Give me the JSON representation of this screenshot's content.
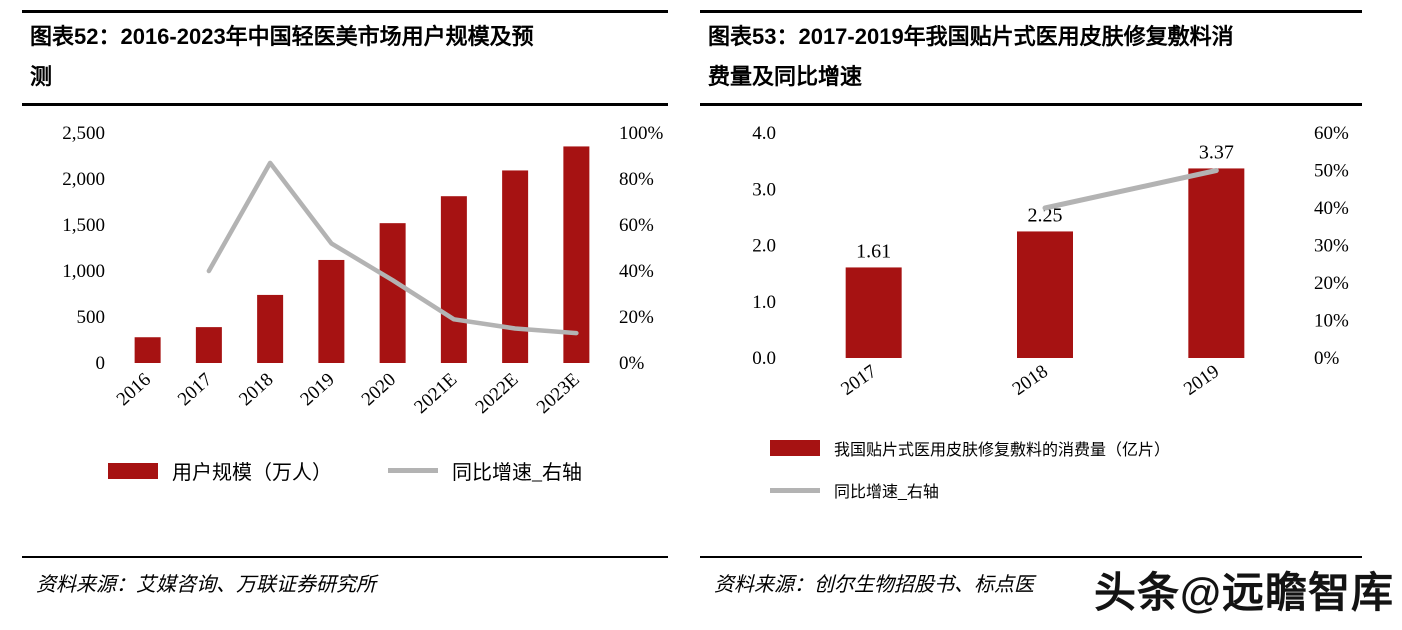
{
  "watermark": "头条@远瞻智库",
  "colors": {
    "bar": "#A61212",
    "line": "#B3B3B3"
  },
  "figure52": {
    "title": "图表52：2016-2023年中国轻医美市场用户规模及预测",
    "title_lines": [
      "图表52：2016-2023年中国轻医美市场用户规模及预",
      "测"
    ],
    "legend": {
      "bar": "用户规模（万人）",
      "line": "同比增速_右轴"
    },
    "source": "资料来源：艾媒咨询、万联证券研究所",
    "chart_data": {
      "type": "bar",
      "title": "2016-2023年中国轻医美市场用户规模及预测",
      "categories": [
        "2016",
        "2017",
        "2018",
        "2019",
        "2020",
        "2021E",
        "2022E",
        "2023E"
      ],
      "series": [
        {
          "name": "用户规模（万人）",
          "type": "bar",
          "axis": "left",
          "values": [
            280,
            390,
            740,
            1120,
            1520,
            1813,
            2093,
            2354
          ]
        },
        {
          "name": "同比增速_右轴",
          "type": "line",
          "axis": "right",
          "values": [
            null,
            40,
            87,
            52,
            36,
            19,
            15,
            13
          ]
        }
      ],
      "y_left": {
        "min": 0,
        "max": 2500,
        "ticks": [
          "0",
          "500",
          "1,000",
          "1,500",
          "2,000",
          "2,500"
        ]
      },
      "y_right": {
        "min": 0,
        "max": 100,
        "ticks": [
          "0%",
          "20%",
          "40%",
          "60%",
          "80%",
          "100%"
        ]
      },
      "grid": false,
      "legend_position": "bottom"
    }
  },
  "figure53": {
    "title": "图表53：2017-2019年我国贴片式医用皮肤修复敷料消费量及同比增速",
    "title_lines": [
      "图表53：2017-2019年我国贴片式医用皮肤修复敷料消",
      "费量及同比增速"
    ],
    "legend": {
      "bar": "我国贴片式医用皮肤修复敷料的消费量（亿片）",
      "line": "同比增速_右轴"
    },
    "source": "资料来源：创尔生物招股书、标点医",
    "chart_data": {
      "type": "bar",
      "title": "2017-2019年我国贴片式医用皮肤修复敷料消费量及同比增速",
      "categories": [
        "2017",
        "2018",
        "2019"
      ],
      "series": [
        {
          "name": "我国贴片式医用皮肤修复敷料的消费量（亿片）",
          "type": "bar",
          "axis": "left",
          "values": [
            1.61,
            2.25,
            3.37
          ],
          "labels": [
            "1.61",
            "2.25",
            "3.37"
          ]
        },
        {
          "name": "同比增速_右轴",
          "type": "line",
          "axis": "right",
          "values": [
            null,
            40,
            50
          ]
        }
      ],
      "y_left": {
        "min": 0,
        "max": 4,
        "ticks": [
          "0.0",
          "1.0",
          "2.0",
          "3.0",
          "4.0"
        ]
      },
      "y_right": {
        "min": 0,
        "max": 60,
        "ticks": [
          "0%",
          "10%",
          "20%",
          "30%",
          "40%",
          "50%",
          "60%"
        ]
      },
      "grid": false,
      "legend_position": "bottom"
    }
  }
}
